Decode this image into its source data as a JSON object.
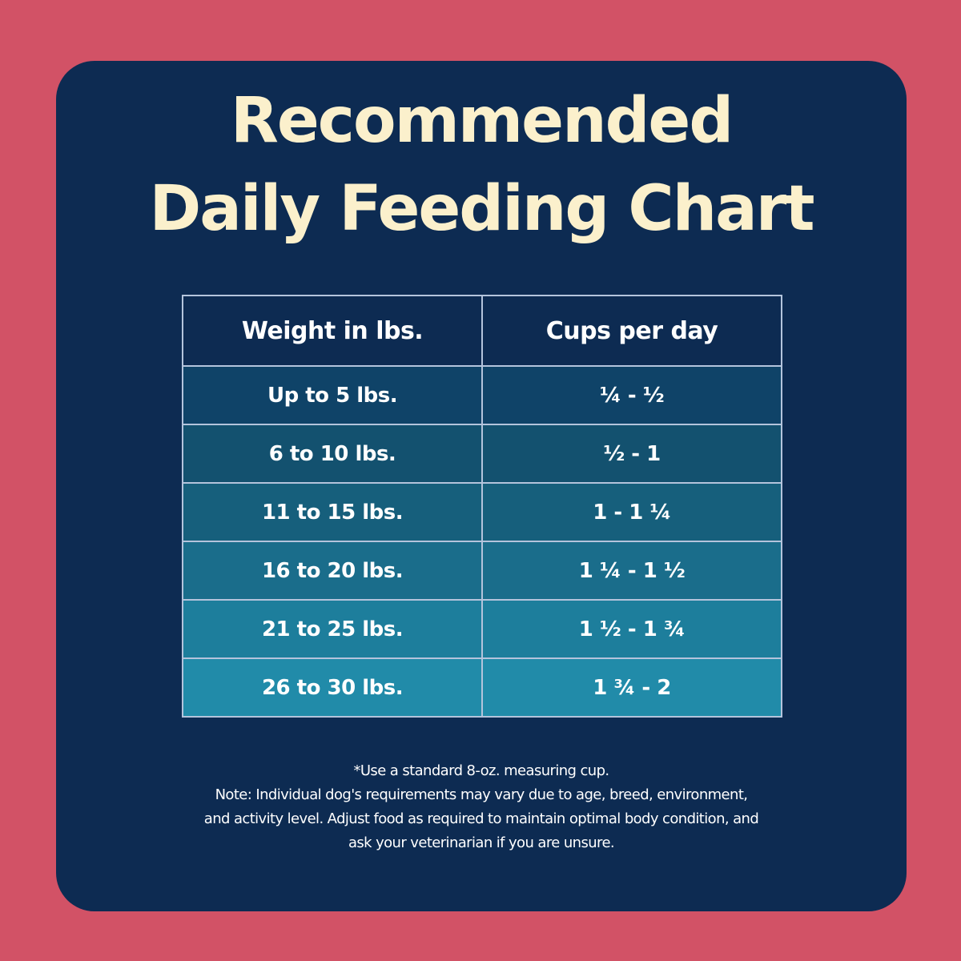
{
  "title": {
    "line1": "Recommended",
    "line2": "Daily Feeding Chart"
  },
  "table": {
    "headers": [
      "Weight in lbs.",
      "Cups per day"
    ],
    "rows": [
      [
        "Up to 5 lbs.",
        "¼ - ½"
      ],
      [
        "6 to 10 lbs.",
        "½ - 1"
      ],
      [
        "11 to 15 lbs.",
        "1 - 1 ¼"
      ],
      [
        "16 to 20 lbs.",
        "1 ¼ - 1 ½"
      ],
      [
        "21 to 25 lbs.",
        "1 ½ - 1 ¾"
      ],
      [
        "26 to 30 lbs.",
        "1 ¾ - 2"
      ]
    ],
    "row_colors": [
      "#0f4368",
      "#13516f",
      "#165f7c",
      "#1a6d8b",
      "#1d7e9c",
      "#218ba9"
    ]
  },
  "notes": {
    "line1": "*Use a standard 8-oz. measuring cup.",
    "line2": "Note: Individual dog's requirements may vary due to age, breed, environment,",
    "line3": "and activity level. Adjust food as required to maintain optimal body condition, and",
    "line4": "ask your veterinarian if you are unsure."
  },
  "colors": {
    "background": "#d25266",
    "card": "#0d2b52",
    "title": "#fbf0cc",
    "text": "#ffffff",
    "table_border": "#b4c4dc"
  }
}
